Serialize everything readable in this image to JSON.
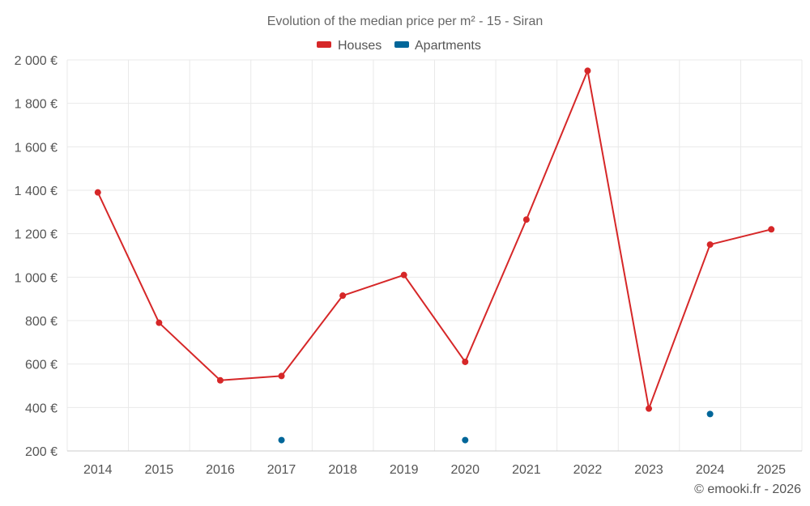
{
  "chart_data": {
    "type": "line",
    "title": "Evolution of the median price per m² - 15 - Siran",
    "categories": [
      "2014",
      "2015",
      "2016",
      "2017",
      "2018",
      "2019",
      "2020",
      "2021",
      "2022",
      "2023",
      "2024",
      "2025"
    ],
    "series": [
      {
        "name": "Houses",
        "color": "#d62728",
        "values": [
          1390,
          790,
          525,
          545,
          915,
          1010,
          610,
          1265,
          1950,
          395,
          1150,
          1220
        ],
        "line": true
      },
      {
        "name": "Apartments",
        "color": "#006699",
        "values": [
          null,
          null,
          null,
          250,
          null,
          null,
          250,
          null,
          null,
          null,
          370,
          null
        ],
        "line": false
      }
    ],
    "ylim": [
      200,
      2000
    ],
    "yticks": [
      200,
      400,
      600,
      800,
      1000,
      1200,
      1400,
      1600,
      1800,
      2000
    ],
    "ytick_labels": [
      "200 €",
      "400 €",
      "600 €",
      "800 €",
      "1 000 €",
      "1 200 €",
      "1 400 €",
      "1 600 €",
      "1 800 €",
      "2 000 €"
    ],
    "grid": true,
    "legend_position": "top-center",
    "credit": "© emooki.fr - 2026"
  }
}
